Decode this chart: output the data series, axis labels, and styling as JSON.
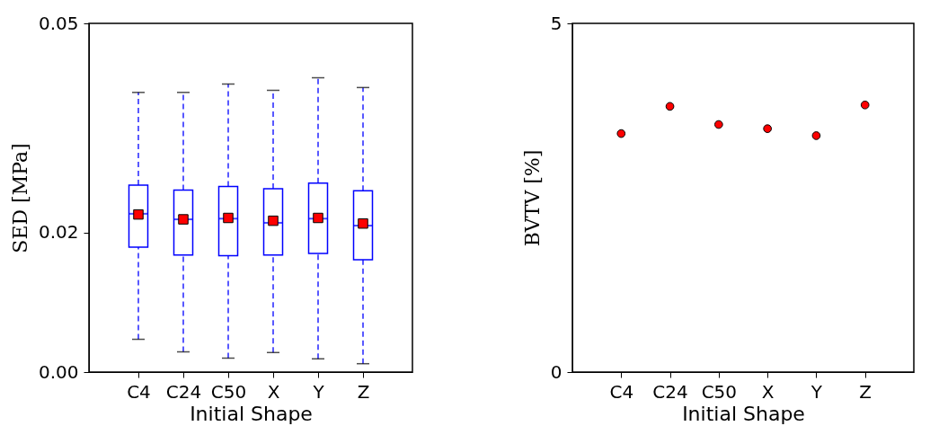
{
  "chart_data": [
    {
      "type": "box",
      "xlabel": "Initial Shape",
      "ylabel": "SED [MPa]",
      "categories": [
        "C4",
        "C24",
        "C50",
        "X",
        "Y",
        "Z"
      ],
      "ylim": [
        0,
        0.05
      ],
      "yticks": [
        {
          "value": 0,
          "label": "0.00"
        },
        0.02,
        0.05
      ],
      "marker": "square",
      "line_style": "dashed",
      "series": [
        {
          "color": "#0000ff",
          "boxes": [
            {
              "low": 0.0047,
              "q1": 0.0179,
              "median": 0.0227,
              "q3": 0.0268,
              "high": 0.0401,
              "mean": 0.0226
            },
            {
              "low": 0.0029,
              "q1": 0.0168,
              "median": 0.0219,
              "q3": 0.0261,
              "high": 0.0401,
              "mean": 0.0219
            },
            {
              "low": 0.002,
              "q1": 0.0167,
              "median": 0.022,
              "q3": 0.0266,
              "high": 0.0413,
              "mean": 0.0221
            },
            {
              "low": 0.0028,
              "q1": 0.0168,
              "median": 0.0214,
              "q3": 0.0263,
              "high": 0.0404,
              "mean": 0.0217
            },
            {
              "low": 0.0019,
              "q1": 0.017,
              "median": 0.022,
              "q3": 0.0271,
              "high": 0.0422,
              "mean": 0.0221
            },
            {
              "low": 0.0012,
              "q1": 0.0161,
              "median": 0.021,
              "q3": 0.026,
              "high": 0.0408,
              "mean": 0.0213
            }
          ]
        }
      ]
    },
    {
      "type": "scatter",
      "xlabel": "Initial Shape",
      "ylabel": "BVTV [%]",
      "categories": [
        "C4",
        "C24",
        "C50",
        "X",
        "Y",
        "Z"
      ],
      "ylim": [
        0,
        5
      ],
      "yticks": [
        0,
        5
      ],
      "marker": "circle",
      "series": [
        {
          "color": "#ff0000",
          "values": [
            3.42,
            3.81,
            3.55,
            3.49,
            3.39,
            3.83
          ]
        }
      ]
    }
  ]
}
